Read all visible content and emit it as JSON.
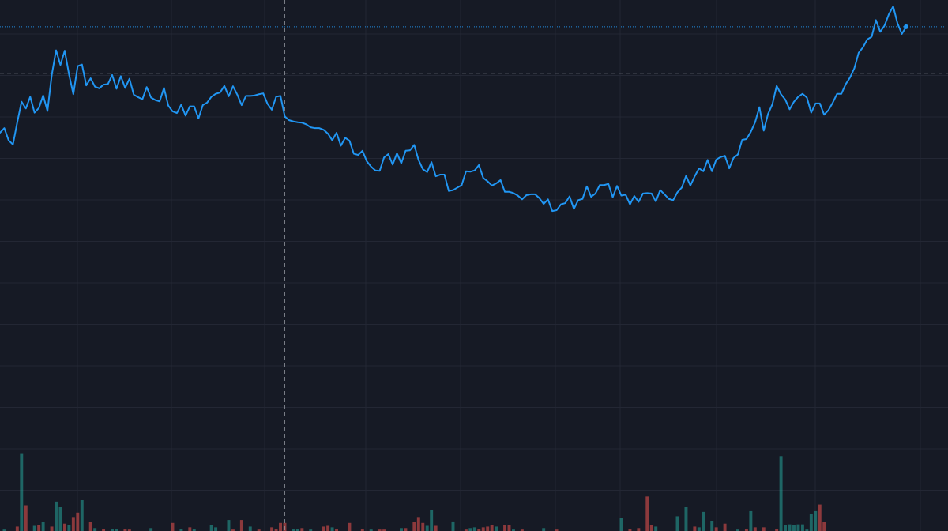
{
  "theme": {
    "background": "#161a25",
    "grid": "#232734",
    "line": "#2196f3",
    "crosshair": "#9598a1",
    "volume_up": "#26a69a",
    "volume_down": "#ef5350"
  },
  "chart_data": {
    "type": "line",
    "title": "",
    "xlabel": "",
    "ylabel": "",
    "grid": true,
    "legend": "none",
    "axis_labels_visible": false,
    "ylim": [
      0,
      100
    ],
    "crosshair": {
      "index": 66,
      "value": 82.5
    },
    "last_value_marker": 93.6,
    "series": [
      {
        "values": [
          68.3,
          69.4,
          66.5,
          65.5,
          70.8,
          75.7,
          74.1,
          76.9,
          73.1,
          74.2,
          77.2,
          73.5,
          82.1,
          88.0,
          84.5,
          87.9,
          82.2,
          77.5,
          84.2,
          84.6,
          79.6,
          81.3,
          79.3,
          78.9,
          79.8,
          79.9,
          82.1,
          78.8,
          81.8,
          79.0,
          81.2,
          77.4,
          76.8,
          76.3,
          79.2,
          76.7,
          76.1,
          75.8,
          79.0,
          74.8,
          73.4,
          73.0,
          75.0,
          72.4,
          74.6,
          74.6,
          71.7,
          74.9,
          75.5,
          76.9,
          77.6,
          77.9,
          79.5,
          77.0,
          79.4,
          77.4,
          74.9,
          77.1,
          77.1,
          77.2,
          77.5,
          77.7,
          75.2,
          73.8,
          76.9,
          77.1,
          72.2,
          71.3,
          71.0,
          70.8,
          70.7,
          70.3,
          69.6,
          69.4,
          69.4,
          69.0,
          68.1,
          66.5,
          68.3,
          65.2,
          67.1,
          66.4,
          63.3,
          63.0,
          64.0,
          61.5,
          60.2,
          59.3,
          59.2,
          62.4,
          63.2,
          60.7,
          63.4,
          61.0,
          64.0,
          64.1,
          65.4,
          61.8,
          59.6,
          58.9,
          61.3,
          57.9,
          58.3,
          58.3,
          54.4,
          54.6,
          55.2,
          55.8,
          59.1,
          59.0,
          59.3,
          60.6,
          57.5,
          56.7,
          55.7,
          56.2,
          57.0,
          54.2,
          54.2,
          53.9,
          53.3,
          52.4,
          53.4,
          53.6,
          53.6,
          52.7,
          51.3,
          52.4,
          49.6,
          49.8,
          51.2,
          51.5,
          53.1,
          50.1,
          52.2,
          52.5,
          55.5,
          53.0,
          53.8,
          55.8,
          55.8,
          56.1,
          52.9,
          55.6,
          53.3,
          53.5,
          51.2,
          53.2,
          51.8,
          53.8,
          53.9,
          53.8,
          51.9,
          54.6,
          53.6,
          52.5,
          52.2,
          54.1,
          55.2,
          58.0,
          55.7,
          57.9,
          59.8,
          59.1,
          61.8,
          59.1,
          61.9,
          62.5,
          62.8,
          59.8,
          62.3,
          63.1,
          66.6,
          66.8,
          68.5,
          70.8,
          74.4,
          68.8,
          72.8,
          75.1,
          79.5,
          77.5,
          76.2,
          73.9,
          75.7,
          76.9,
          77.6,
          76.7,
          73.1,
          75.3,
          75.3,
          72.6,
          73.7,
          75.5,
          77.6,
          77.6,
          79.9,
          81.5,
          83.7,
          87.4,
          88.7,
          90.6,
          91.2,
          95.2,
          92.4,
          93.9,
          96.6,
          98.5,
          94.4,
          91.9,
          93.6
        ]
      }
    ],
    "volume": {
      "ylim": [
        0,
        140
      ],
      "bars": [
        {
          "i": 1,
          "v": 2,
          "up": true
        },
        {
          "i": 4,
          "v": 6,
          "up": false
        },
        {
          "i": 5,
          "v": 106,
          "up": true
        },
        {
          "i": 6,
          "v": 35,
          "up": false
        },
        {
          "i": 8,
          "v": 7,
          "up": true
        },
        {
          "i": 9,
          "v": 8,
          "up": false
        },
        {
          "i": 10,
          "v": 12,
          "up": true
        },
        {
          "i": 12,
          "v": 6,
          "up": false
        },
        {
          "i": 13,
          "v": 40,
          "up": true
        },
        {
          "i": 14,
          "v": 33,
          "up": true
        },
        {
          "i": 15,
          "v": 10,
          "up": false
        },
        {
          "i": 16,
          "v": 8,
          "up": true
        },
        {
          "i": 17,
          "v": 19,
          "up": false
        },
        {
          "i": 18,
          "v": 25,
          "up": false
        },
        {
          "i": 19,
          "v": 42,
          "up": true
        },
        {
          "i": 21,
          "v": 12,
          "up": false
        },
        {
          "i": 22,
          "v": 4,
          "up": true
        },
        {
          "i": 24,
          "v": 3,
          "up": false
        },
        {
          "i": 26,
          "v": 3,
          "up": true
        },
        {
          "i": 27,
          "v": 3,
          "up": true
        },
        {
          "i": 29,
          "v": 3,
          "up": false
        },
        {
          "i": 30,
          "v": 2,
          "up": false
        },
        {
          "i": 35,
          "v": 4,
          "up": true
        },
        {
          "i": 40,
          "v": 11,
          "up": false
        },
        {
          "i": 42,
          "v": 3,
          "up": true
        },
        {
          "i": 44,
          "v": 5,
          "up": false
        },
        {
          "i": 45,
          "v": 3,
          "up": true
        },
        {
          "i": 49,
          "v": 8,
          "up": true
        },
        {
          "i": 50,
          "v": 5,
          "up": true
        },
        {
          "i": 53,
          "v": 15,
          "up": true
        },
        {
          "i": 54,
          "v": 2,
          "up": false
        },
        {
          "i": 56,
          "v": 15,
          "up": false
        },
        {
          "i": 58,
          "v": 6,
          "up": true
        },
        {
          "i": 60,
          "v": 2,
          "up": false
        },
        {
          "i": 63,
          "v": 5,
          "up": false
        },
        {
          "i": 64,
          "v": 3,
          "up": false
        },
        {
          "i": 65,
          "v": 11,
          "up": false
        },
        {
          "i": 66,
          "v": 11,
          "up": false
        },
        {
          "i": 68,
          "v": 3,
          "up": true
        },
        {
          "i": 69,
          "v": 3,
          "up": true
        },
        {
          "i": 70,
          "v": 4,
          "up": false
        },
        {
          "i": 72,
          "v": 2,
          "up": true
        },
        {
          "i": 75,
          "v": 6,
          "up": false
        },
        {
          "i": 76,
          "v": 7,
          "up": false
        },
        {
          "i": 77,
          "v": 5,
          "up": true
        },
        {
          "i": 78,
          "v": 3,
          "up": false
        },
        {
          "i": 81,
          "v": 11,
          "up": false
        },
        {
          "i": 84,
          "v": 3,
          "up": false
        },
        {
          "i": 86,
          "v": 2,
          "up": true
        },
        {
          "i": 88,
          "v": 2,
          "up": false
        },
        {
          "i": 89,
          "v": 2,
          "up": false
        },
        {
          "i": 93,
          "v": 4,
          "up": true
        },
        {
          "i": 94,
          "v": 4,
          "up": false
        },
        {
          "i": 96,
          "v": 12,
          "up": false
        },
        {
          "i": 97,
          "v": 19,
          "up": false
        },
        {
          "i": 98,
          "v": 11,
          "up": false
        },
        {
          "i": 99,
          "v": 7,
          "up": true
        },
        {
          "i": 100,
          "v": 28,
          "up": true
        },
        {
          "i": 101,
          "v": 7,
          "up": false
        },
        {
          "i": 105,
          "v": 13,
          "up": true
        },
        {
          "i": 108,
          "v": 2,
          "up": false
        },
        {
          "i": 109,
          "v": 4,
          "up": true
        },
        {
          "i": 110,
          "v": 5,
          "up": true
        },
        {
          "i": 111,
          "v": 3,
          "up": false
        },
        {
          "i": 112,
          "v": 5,
          "up": false
        },
        {
          "i": 113,
          "v": 6,
          "up": false
        },
        {
          "i": 114,
          "v": 8,
          "up": false
        },
        {
          "i": 115,
          "v": 6,
          "up": true
        },
        {
          "i": 117,
          "v": 8,
          "up": false
        },
        {
          "i": 118,
          "v": 8,
          "up": false
        },
        {
          "i": 119,
          "v": 2,
          "up": true
        },
        {
          "i": 121,
          "v": 2,
          "up": false
        },
        {
          "i": 126,
          "v": 4,
          "up": true
        },
        {
          "i": 129,
          "v": 2,
          "up": false
        },
        {
          "i": 144,
          "v": 18,
          "up": true
        },
        {
          "i": 146,
          "v": 3,
          "up": false
        },
        {
          "i": 148,
          "v": 4,
          "up": false
        },
        {
          "i": 150,
          "v": 47,
          "up": false
        },
        {
          "i": 151,
          "v": 8,
          "up": false
        },
        {
          "i": 152,
          "v": 6,
          "up": true
        },
        {
          "i": 157,
          "v": 20,
          "up": true
        },
        {
          "i": 159,
          "v": 33,
          "up": true
        },
        {
          "i": 161,
          "v": 6,
          "up": false
        },
        {
          "i": 162,
          "v": 5,
          "up": true
        },
        {
          "i": 163,
          "v": 26,
          "up": true
        },
        {
          "i": 165,
          "v": 14,
          "up": true
        },
        {
          "i": 166,
          "v": 5,
          "up": false
        },
        {
          "i": 168,
          "v": 10,
          "up": false
        },
        {
          "i": 171,
          "v": 2,
          "up": true
        },
        {
          "i": 173,
          "v": 3,
          "up": false
        },
        {
          "i": 174,
          "v": 27,
          "up": true
        },
        {
          "i": 175,
          "v": 5,
          "up": false
        },
        {
          "i": 177,
          "v": 5,
          "up": false
        },
        {
          "i": 180,
          "v": 3,
          "up": false
        },
        {
          "i": 181,
          "v": 102,
          "up": true
        },
        {
          "i": 182,
          "v": 8,
          "up": true
        },
        {
          "i": 183,
          "v": 9,
          "up": true
        },
        {
          "i": 184,
          "v": 8,
          "up": true
        },
        {
          "i": 185,
          "v": 9,
          "up": true
        },
        {
          "i": 186,
          "v": 9,
          "up": true
        },
        {
          "i": 187,
          "v": 2,
          "up": true
        },
        {
          "i": 188,
          "v": 23,
          "up": true
        },
        {
          "i": 189,
          "v": 27,
          "up": true
        },
        {
          "i": 190,
          "v": 36,
          "up": false
        },
        {
          "i": 191,
          "v": 12,
          "up": false
        }
      ]
    }
  }
}
